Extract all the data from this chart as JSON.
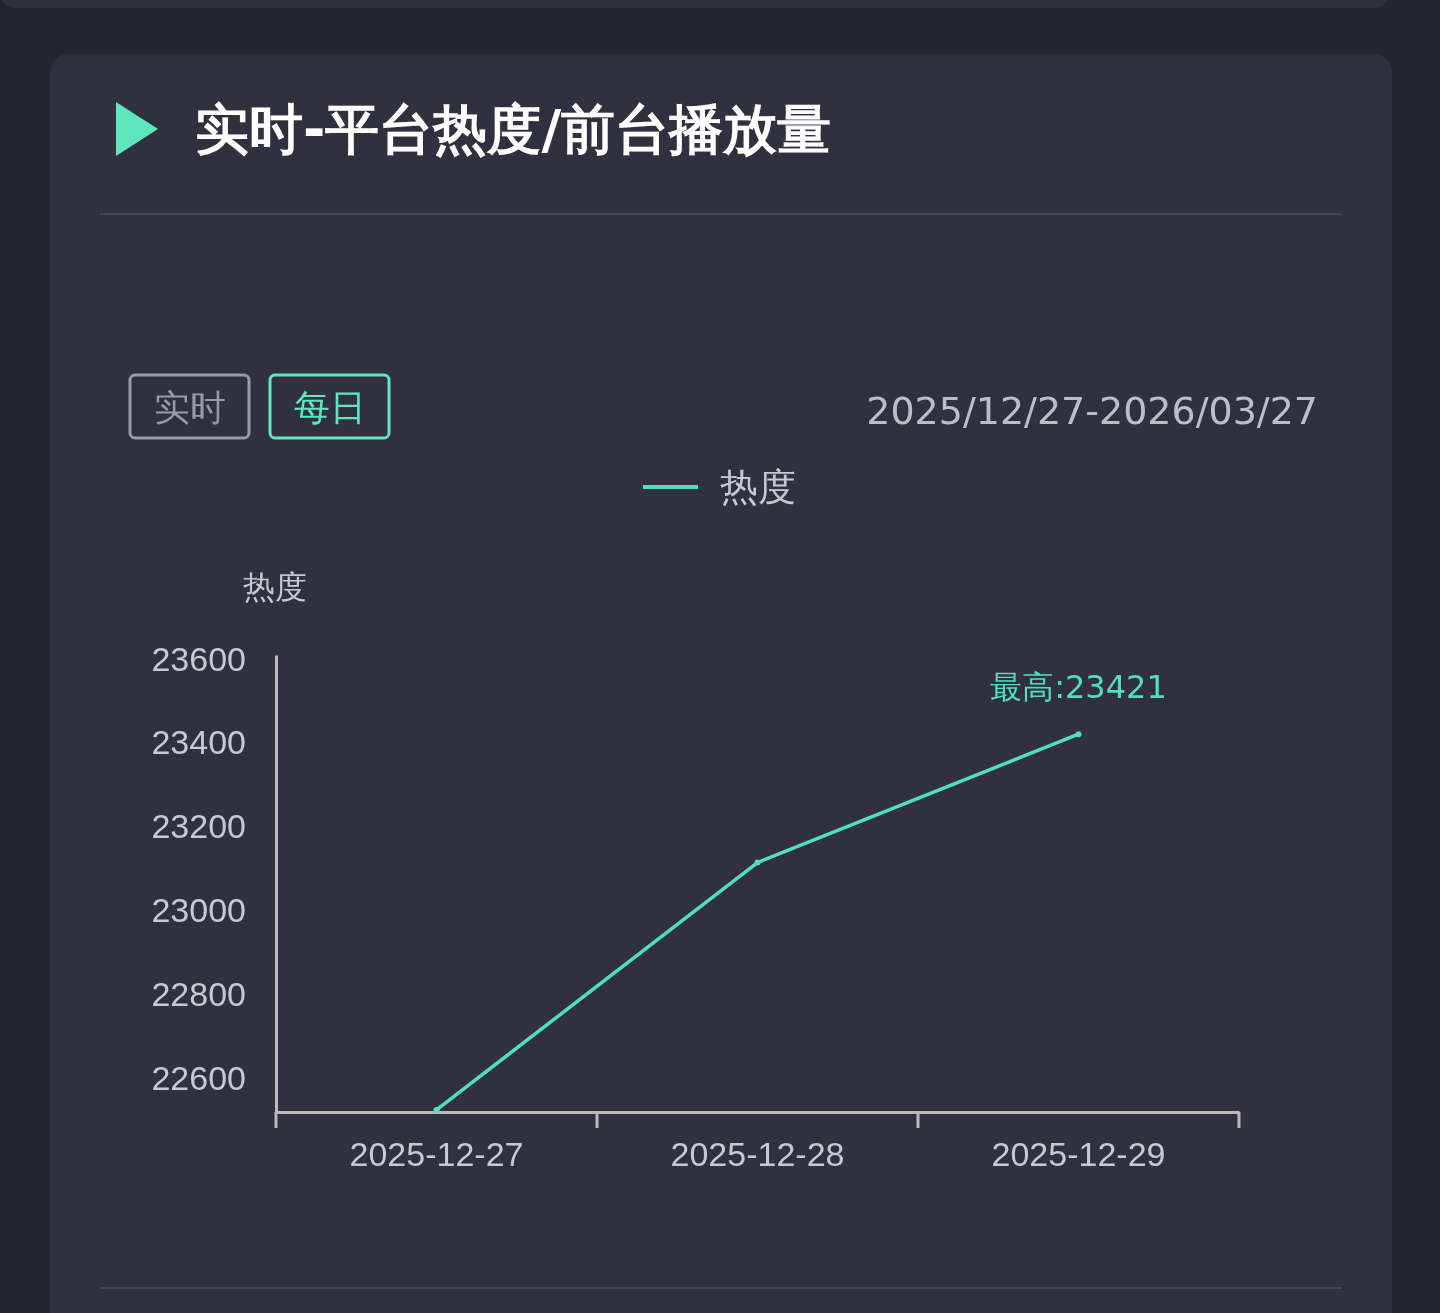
{
  "chart_data": {
    "type": "line",
    "title": "实时-平台热度/前台播放量",
    "ylabel": "热度",
    "annotations": [
      "实时",
      "每日",
      "2025/12/27-2026/03/27",
      {
        "text": "最高:23421",
        "x": "2025-12-29",
        "y": 23421
      }
    ],
    "categories": [
      "2025-12-27",
      "2025-12-28",
      "2025-12-29"
    ],
    "series": [
      {
        "name": "热度",
        "color": "#4fe0b8",
        "values": [
          22525,
          23115,
          23421
        ]
      }
    ],
    "ylim": [
      22520,
      23610
    ],
    "yticks": [
      22600,
      22800,
      23000,
      23200,
      23400,
      23600
    ],
    "grid": false,
    "legend": "top",
    "marker": "circle",
    "line_style": "solid"
  }
}
